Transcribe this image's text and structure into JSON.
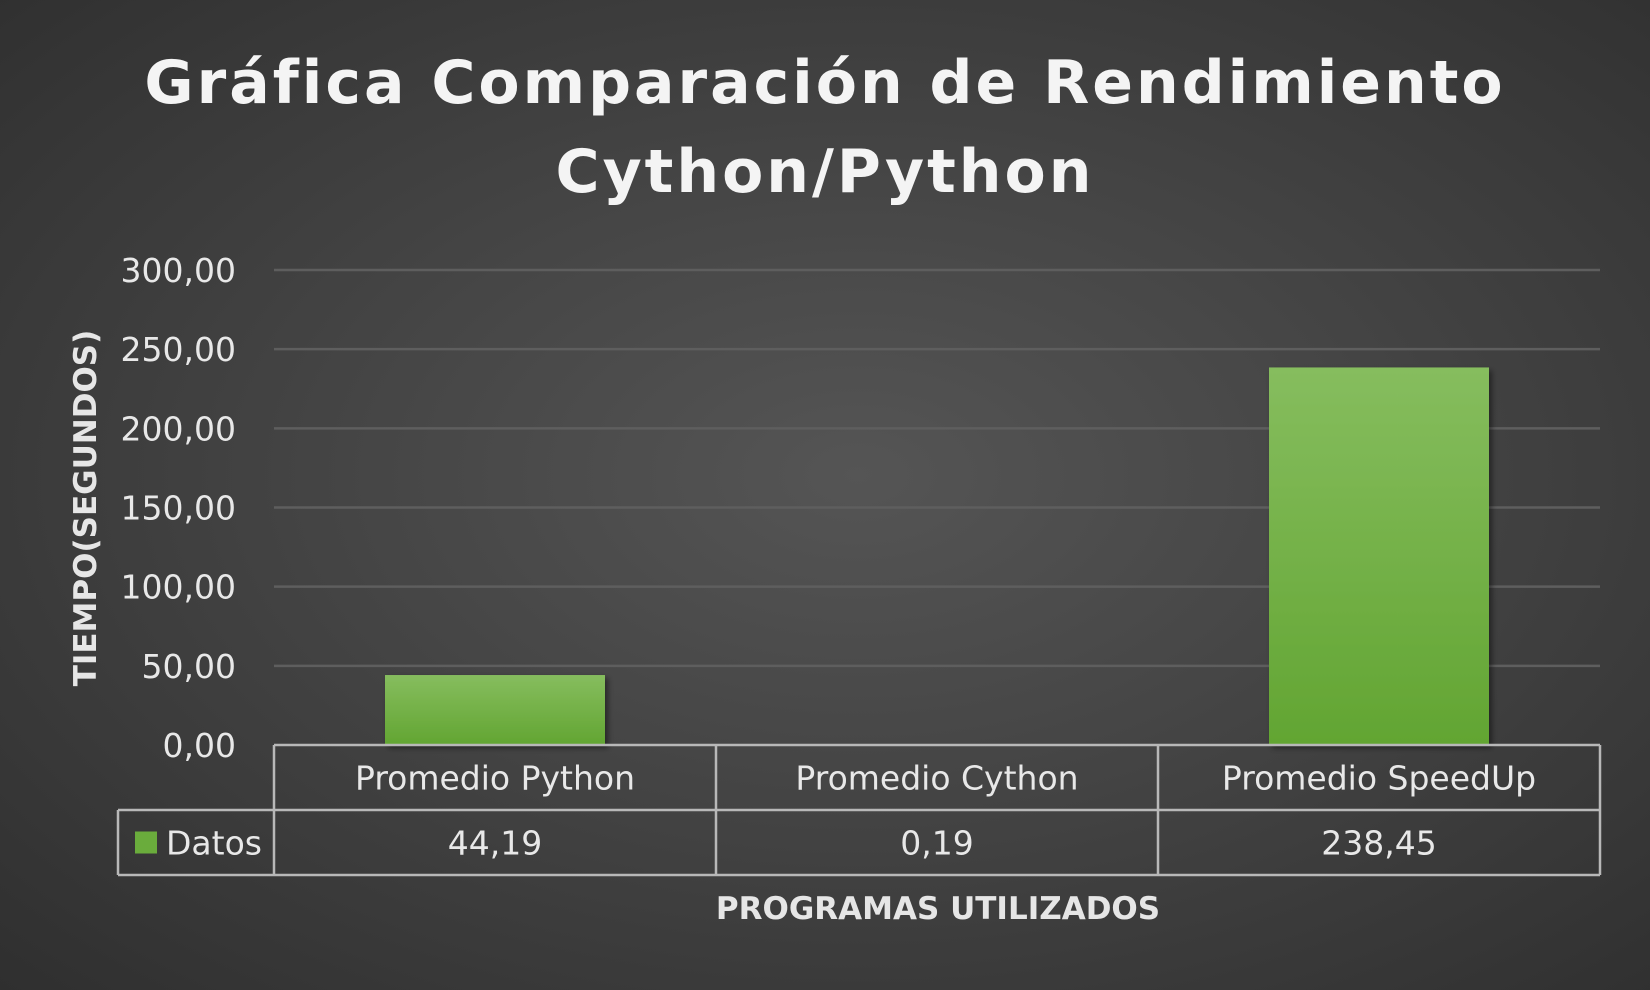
{
  "chart_data": {
    "type": "bar",
    "title_line1": "Gráfica Comparación de Rendimiento",
    "title_line2": "Cython/Python",
    "categories": [
      "Promedio Python",
      "Promedio Cython",
      "Promedio SpeedUp"
    ],
    "series": [
      {
        "name": "Datos",
        "values": [
          44.19,
          0.19,
          238.45
        ],
        "labels": [
          "44,19",
          "0,19",
          "238,45"
        ]
      }
    ],
    "xlabel": "PROGRAMAS UTILIZADOS",
    "ylabel": "TIEMPO(SEGUNDOS)",
    "ylim": [
      0,
      300
    ],
    "yticks": [
      "0,00",
      "50,00",
      "100,00",
      "150,00",
      "200,00",
      "250,00",
      "300,00"
    ],
    "grid": true,
    "data_table": true,
    "colors": {
      "bar": "#6aac3c",
      "bar_light": "#86bd5e",
      "grid": "#5e5e5e",
      "table_line": "#b8b8b8"
    }
  }
}
